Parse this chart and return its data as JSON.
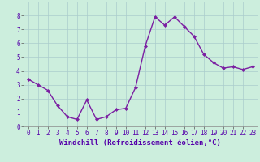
{
  "x": [
    0,
    1,
    2,
    3,
    4,
    5,
    6,
    7,
    8,
    9,
    10,
    11,
    12,
    13,
    14,
    15,
    16,
    17,
    18,
    19,
    20,
    21,
    22,
    23
  ],
  "y": [
    3.4,
    3.0,
    2.6,
    1.5,
    0.7,
    0.5,
    1.9,
    0.5,
    0.7,
    1.2,
    1.3,
    2.8,
    5.8,
    7.9,
    7.3,
    7.9,
    7.2,
    6.5,
    5.2,
    4.6,
    4.2,
    4.3,
    4.1,
    4.3
  ],
  "line_color": "#7b1fa2",
  "marker": "D",
  "marker_size": 2,
  "linewidth": 1.0,
  "bg_color": "#cceedd",
  "grid_color": "#aacccc",
  "xlabel": "Windchill (Refroidissement éolien,°C)",
  "xlabel_fontsize": 6.5,
  "tick_fontsize": 5.5,
  "xlim": [
    -0.5,
    23.5
  ],
  "ylim": [
    0,
    9
  ],
  "yticks": [
    0,
    1,
    2,
    3,
    4,
    5,
    6,
    7,
    8
  ],
  "xticks": [
    0,
    1,
    2,
    3,
    4,
    5,
    6,
    7,
    8,
    9,
    10,
    11,
    12,
    13,
    14,
    15,
    16,
    17,
    18,
    19,
    20,
    21,
    22,
    23
  ]
}
